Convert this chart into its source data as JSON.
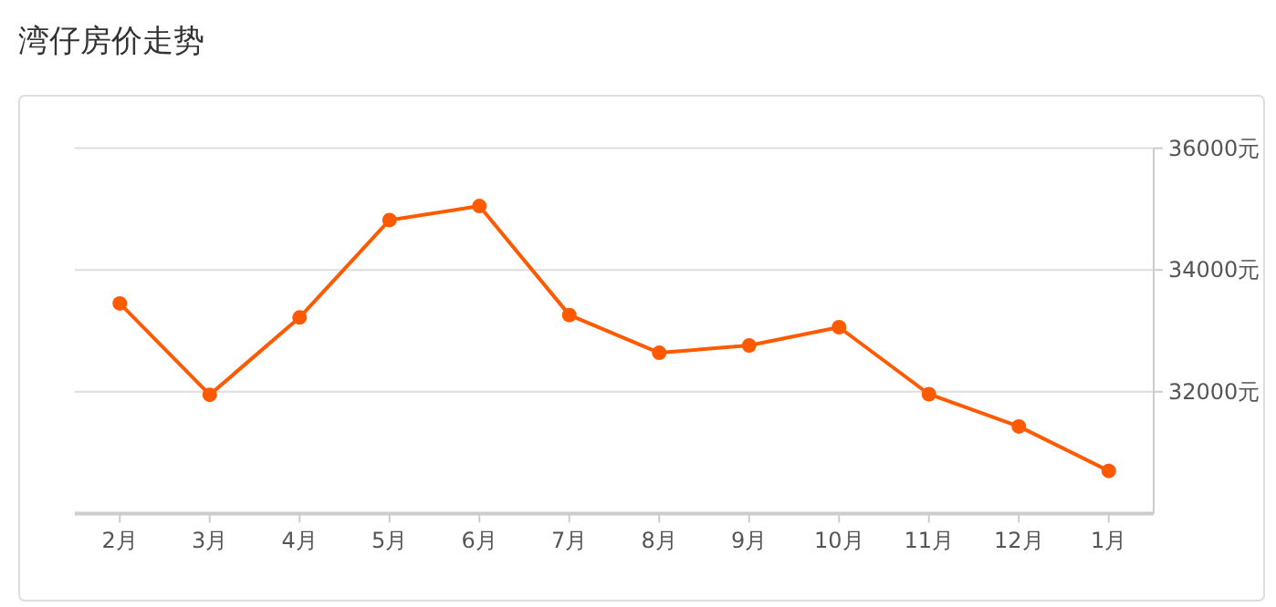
{
  "chart_data": {
    "type": "line",
    "title": "湾仔房价走势",
    "categories": [
      "2月",
      "3月",
      "4月",
      "5月",
      "6月",
      "7月",
      "8月",
      "9月",
      "10月",
      "11月",
      "12月",
      "1月"
    ],
    "series": [
      {
        "color": "#ff5a00",
        "values": [
          33450,
          31950,
          33220,
          34820,
          35050,
          33260,
          32640,
          32760,
          33060,
          31960,
          31430,
          30700
        ]
      }
    ],
    "ylim": [
      30000,
      36000
    ],
    "yticks": [
      {
        "value": 32000,
        "label": "32000元"
      },
      {
        "value": 34000,
        "label": "34000元"
      },
      {
        "value": 36000,
        "label": "36000元"
      }
    ],
    "grid": "y",
    "marker": "circle",
    "line_style": "solid"
  }
}
